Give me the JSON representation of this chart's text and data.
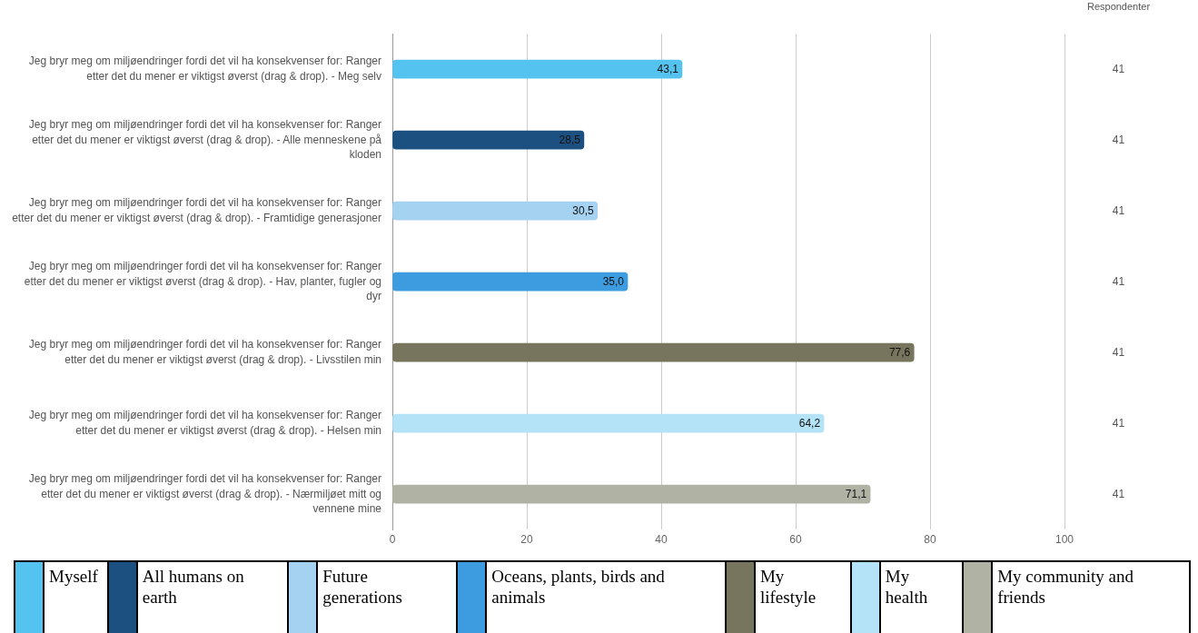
{
  "chart_data": {
    "type": "bar",
    "orientation": "horizontal",
    "categories": [
      "Jeg bryr meg om miljøendringer fordi det vil ha konsekvenser for: Ranger etter det du mener er viktigst øverst (drag & drop). - Meg selv",
      "Jeg bryr meg om miljøendringer fordi det vil ha konsekvenser for: Ranger etter det du mener er viktigst øverst (drag & drop). - Alle menneskene på kloden",
      "Jeg bryr meg om miljøendringer fordi det vil ha konsekvenser for: Ranger etter det du mener er viktigst øverst (drag & drop). - Framtidige generasjoner",
      "Jeg bryr meg om miljøendringer fordi det vil ha konsekvenser for: Ranger etter det du mener er viktigst øverst (drag & drop). - Hav, planter, fugler og dyr",
      "Jeg bryr meg om miljøendringer fordi det vil ha konsekvenser for: Ranger etter det du mener er viktigst øverst (drag & drop). - Livsstilen min",
      "Jeg bryr meg om miljøendringer fordi det vil ha konsekvenser for: Ranger etter det du mener er viktigst øverst (drag & drop). - Helsen min",
      "Jeg bryr meg om miljøendringer fordi det vil ha konsekvenser for: Ranger etter det du mener er viktigst øverst (drag & drop). - Nærmiljøet mitt og vennene mine"
    ],
    "series": [
      {
        "name": "Myself",
        "color": "#55c3f0",
        "values": [
          43.1,
          null,
          null,
          null,
          null,
          null,
          null
        ],
        "value_labels": [
          "43,1",
          null,
          null,
          null,
          null,
          null,
          null
        ]
      },
      {
        "name": "All humans on earth",
        "color": "#1b5081",
        "values": [
          null,
          28.5,
          null,
          null,
          null,
          null,
          null
        ],
        "value_labels": [
          null,
          "28,5",
          null,
          null,
          null,
          null,
          null
        ]
      },
      {
        "name": "Future generations",
        "color": "#a6d2f2",
        "values": [
          null,
          null,
          30.5,
          null,
          null,
          null,
          null
        ],
        "value_labels": [
          null,
          null,
          "30,5",
          null,
          null,
          null,
          null
        ]
      },
      {
        "name": "Oceans, plants, birds and animals",
        "color": "#3d9ce0",
        "values": [
          null,
          null,
          null,
          35.0,
          null,
          null,
          null
        ],
        "value_labels": [
          null,
          null,
          null,
          "35,0",
          null,
          null,
          null
        ]
      },
      {
        "name": "My lifestyle",
        "color": "#77755e",
        "values": [
          null,
          null,
          null,
          null,
          77.6,
          null,
          null
        ],
        "value_labels": [
          null,
          null,
          null,
          null,
          "77,6",
          null,
          null
        ]
      },
      {
        "name": "My health",
        "color": "#b4e3f7",
        "values": [
          null,
          null,
          null,
          null,
          null,
          64.2,
          null
        ],
        "value_labels": [
          null,
          null,
          null,
          null,
          null,
          "64,2",
          null
        ]
      },
      {
        "name": "My community and friends",
        "color": "#b0b2a4",
        "values": [
          null,
          null,
          null,
          null,
          null,
          null,
          71.1
        ],
        "value_labels": [
          null,
          null,
          null,
          null,
          null,
          null,
          "71,1"
        ]
      }
    ],
    "xlim": [
      0,
      100
    ],
    "xticks": [
      0,
      20,
      40,
      60,
      80,
      100
    ],
    "grid": "x",
    "legend": "bottom",
    "annotations": [
      "Respondenter",
      "41",
      "41",
      "41",
      "41",
      "41",
      "41",
      "41"
    ]
  }
}
